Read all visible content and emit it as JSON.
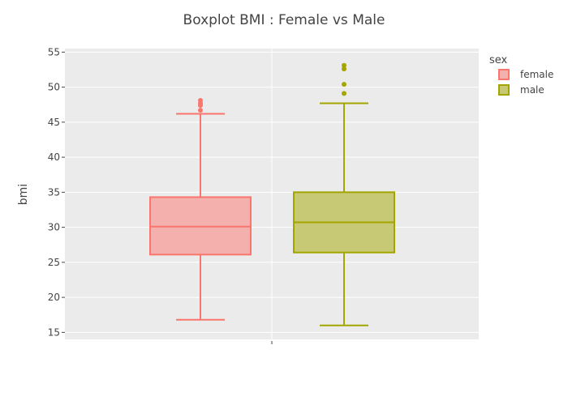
{
  "chart_data": {
    "type": "box",
    "title": "Boxplot BMI : Female vs Male",
    "ylabel": "bmi",
    "xlabel": "",
    "ylim": [
      14,
      55.5
    ],
    "yticks": [
      15,
      20,
      25,
      30,
      35,
      40,
      45,
      50,
      55
    ],
    "grid": true,
    "legend": {
      "title": "sex",
      "position": "top-right"
    },
    "series": [
      {
        "name": "female",
        "color": "#f8766d",
        "fill": "#f4b0ad",
        "min": 16.8,
        "q1": 26.1,
        "median": 30.1,
        "q3": 34.3,
        "max": 46.2,
        "outliers": [
          46.7,
          47.4,
          47.7,
          48.1
        ]
      },
      {
        "name": "male",
        "color": "#a3a500",
        "fill": "#c8c974",
        "min": 16.0,
        "q1": 26.4,
        "median": 30.7,
        "q3": 35.0,
        "max": 47.7,
        "outliers": [
          49.1,
          50.4,
          52.6,
          53.1
        ]
      }
    ]
  }
}
